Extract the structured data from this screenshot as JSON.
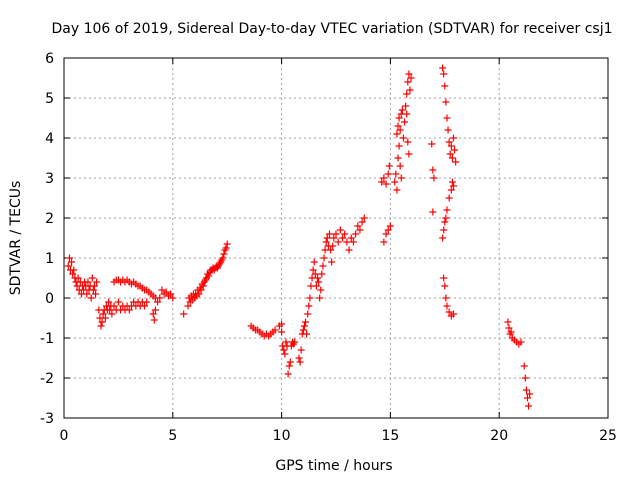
{
  "chart_data": {
    "type": "scatter",
    "title": "Day 106 of 2019, Sidereal Day-to-day VTEC variation (SDTVAR) for receiver csj1",
    "xlabel": "GPS time / hours",
    "ylabel": "SDTVAR / TECUs",
    "xlim": [
      0,
      25
    ],
    "ylim": [
      -3,
      6
    ],
    "xticks": [
      "0",
      "5",
      "10",
      "15",
      "20",
      "25"
    ],
    "yticks": [
      "-3",
      "-2",
      "-1",
      "0",
      "1",
      "2",
      "3",
      "4",
      "5",
      "6"
    ],
    "grid": true,
    "marker": "+",
    "color": "#ff0000",
    "series": [
      {
        "name": "SDTVAR",
        "points": [
          [
            0.2,
            0.8
          ],
          [
            0.25,
            1.0
          ],
          [
            0.3,
            0.7
          ],
          [
            0.35,
            0.9
          ],
          [
            0.4,
            0.6
          ],
          [
            0.45,
            0.7
          ],
          [
            0.5,
            0.5
          ],
          [
            0.55,
            0.4
          ],
          [
            0.6,
            0.3
          ],
          [
            0.65,
            0.5
          ],
          [
            0.7,
            0.2
          ],
          [
            0.75,
            0.4
          ],
          [
            0.8,
            0.1
          ],
          [
            0.85,
            0.3
          ],
          [
            0.9,
            0.2
          ],
          [
            0.95,
            0.4
          ],
          [
            1.0,
            0.3
          ],
          [
            1.05,
            0.1
          ],
          [
            1.1,
            0.4
          ],
          [
            1.15,
            0.2
          ],
          [
            1.2,
            0.3
          ],
          [
            1.25,
            0.0
          ],
          [
            1.3,
            0.5
          ],
          [
            1.35,
            0.2
          ],
          [
            1.4,
            0.3
          ],
          [
            1.45,
            0.1
          ],
          [
            1.5,
            0.4
          ],
          [
            1.6,
            -0.3
          ],
          [
            1.65,
            -0.5
          ],
          [
            1.7,
            -0.7
          ],
          [
            1.75,
            -0.6
          ],
          [
            1.8,
            -0.4
          ],
          [
            1.85,
            -0.3
          ],
          [
            1.9,
            -0.5
          ],
          [
            1.95,
            -0.2
          ],
          [
            2.0,
            -0.3
          ],
          [
            2.05,
            -0.1
          ],
          [
            2.1,
            -0.3
          ],
          [
            2.15,
            -0.2
          ],
          [
            2.2,
            -0.4
          ],
          [
            2.3,
            -0.2
          ],
          [
            2.4,
            -0.3
          ],
          [
            2.5,
            -0.1
          ],
          [
            2.6,
            -0.3
          ],
          [
            2.7,
            -0.2
          ],
          [
            2.8,
            -0.3
          ],
          [
            2.9,
            -0.2
          ],
          [
            3.0,
            -0.3
          ],
          [
            3.1,
            -0.2
          ],
          [
            3.2,
            -0.1
          ],
          [
            3.3,
            -0.2
          ],
          [
            3.4,
            -0.1
          ],
          [
            3.5,
            -0.2
          ],
          [
            3.6,
            -0.1
          ],
          [
            3.7,
            -0.2
          ],
          [
            3.8,
            -0.1
          ],
          [
            2.3,
            0.4
          ],
          [
            2.4,
            0.45
          ],
          [
            2.5,
            0.45
          ],
          [
            2.6,
            0.4
          ],
          [
            2.7,
            0.45
          ],
          [
            2.8,
            0.4
          ],
          [
            2.9,
            0.45
          ],
          [
            3.0,
            0.4
          ],
          [
            3.1,
            0.35
          ],
          [
            3.2,
            0.4
          ],
          [
            3.3,
            0.35
          ],
          [
            3.4,
            0.3
          ],
          [
            3.5,
            0.3
          ],
          [
            3.6,
            0.25
          ],
          [
            3.7,
            0.2
          ],
          [
            3.8,
            0.2
          ],
          [
            3.9,
            0.15
          ],
          [
            4.0,
            0.1
          ],
          [
            4.1,
            0.05
          ],
          [
            4.2,
            0.0
          ],
          [
            4.1,
            -0.4
          ],
          [
            4.15,
            -0.55
          ],
          [
            4.2,
            -0.3
          ],
          [
            4.3,
            -0.1
          ],
          [
            4.4,
            0.0
          ],
          [
            4.5,
            0.2
          ],
          [
            4.6,
            0.1
          ],
          [
            4.7,
            0.15
          ],
          [
            4.8,
            0.05
          ],
          [
            4.9,
            0.1
          ],
          [
            5.0,
            0.0
          ],
          [
            5.5,
            -0.4
          ],
          [
            5.7,
            -0.2
          ],
          [
            5.75,
            0.0
          ],
          [
            5.8,
            -0.1
          ],
          [
            5.85,
            0.05
          ],
          [
            5.9,
            -0.05
          ],
          [
            5.95,
            0.1
          ],
          [
            6.0,
            0.0
          ],
          [
            6.05,
            0.1
          ],
          [
            6.1,
            0.05
          ],
          [
            6.15,
            0.2
          ],
          [
            6.2,
            0.1
          ],
          [
            6.25,
            0.25
          ],
          [
            6.3,
            0.2
          ],
          [
            6.35,
            0.35
          ],
          [
            6.4,
            0.3
          ],
          [
            6.45,
            0.4
          ],
          [
            6.5,
            0.45
          ],
          [
            6.55,
            0.5
          ],
          [
            6.6,
            0.6
          ],
          [
            6.65,
            0.55
          ],
          [
            6.7,
            0.65
          ],
          [
            6.75,
            0.7
          ],
          [
            6.8,
            0.7
          ],
          [
            6.85,
            0.75
          ],
          [
            6.9,
            0.7
          ],
          [
            6.95,
            0.75
          ],
          [
            7.0,
            0.8
          ],
          [
            7.05,
            0.75
          ],
          [
            7.1,
            0.8
          ],
          [
            7.15,
            0.85
          ],
          [
            7.2,
            0.9
          ],
          [
            7.25,
            0.95
          ],
          [
            7.3,
            1.0
          ],
          [
            7.35,
            1.1
          ],
          [
            7.4,
            1.2
          ],
          [
            7.45,
            1.25
          ],
          [
            7.5,
            1.35
          ],
          [
            8.6,
            -0.7
          ],
          [
            8.7,
            -0.75
          ],
          [
            8.8,
            -0.8
          ],
          [
            8.9,
            -0.8
          ],
          [
            9.0,
            -0.85
          ],
          [
            9.1,
            -0.9
          ],
          [
            9.2,
            -0.95
          ],
          [
            9.3,
            -0.9
          ],
          [
            9.4,
            -0.95
          ],
          [
            9.5,
            -0.9
          ],
          [
            9.6,
            -0.85
          ],
          [
            9.7,
            -0.8
          ],
          [
            9.9,
            -0.7
          ],
          [
            10.0,
            -0.65
          ],
          [
            10.0,
            -0.85
          ],
          [
            10.05,
            -1.2
          ],
          [
            10.1,
            -1.3
          ],
          [
            10.15,
            -1.4
          ],
          [
            10.2,
            -1.1
          ],
          [
            10.25,
            -1.2
          ],
          [
            10.3,
            -1.9
          ],
          [
            10.35,
            -1.7
          ],
          [
            10.4,
            -1.6
          ],
          [
            10.45,
            -1.2
          ],
          [
            10.5,
            -1.1
          ],
          [
            10.55,
            -1.15
          ],
          [
            10.6,
            -1.1
          ],
          [
            10.8,
            -1.5
          ],
          [
            10.85,
            -1.6
          ],
          [
            10.9,
            -1.3
          ],
          [
            10.95,
            -0.9
          ],
          [
            11.0,
            -0.8
          ],
          [
            11.05,
            -0.7
          ],
          [
            11.1,
            -0.6
          ],
          [
            11.15,
            -0.9
          ],
          [
            11.2,
            -0.4
          ],
          [
            11.25,
            -0.2
          ],
          [
            11.3,
            0.0
          ],
          [
            11.35,
            0.3
          ],
          [
            11.4,
            0.5
          ],
          [
            11.45,
            0.7
          ],
          [
            11.5,
            0.9
          ],
          [
            11.55,
            0.6
          ],
          [
            11.6,
            0.3
          ],
          [
            11.65,
            0.5
          ],
          [
            11.7,
            0.4
          ],
          [
            11.75,
            0.0
          ],
          [
            11.8,
            0.2
          ],
          [
            11.85,
            0.6
          ],
          [
            11.9,
            0.8
          ],
          [
            11.95,
            1.0
          ],
          [
            12.0,
            1.2
          ],
          [
            12.05,
            1.4
          ],
          [
            12.1,
            1.5
          ],
          [
            12.15,
            1.3
          ],
          [
            12.2,
            1.6
          ],
          [
            12.25,
            1.2
          ],
          [
            12.3,
            0.9
          ],
          [
            12.35,
            1.3
          ],
          [
            12.4,
            1.5
          ],
          [
            12.5,
            1.6
          ],
          [
            12.6,
            1.4
          ],
          [
            12.7,
            1.7
          ],
          [
            12.8,
            1.5
          ],
          [
            12.9,
            1.6
          ],
          [
            13.0,
            1.4
          ],
          [
            13.1,
            1.2
          ],
          [
            13.2,
            1.5
          ],
          [
            13.3,
            1.4
          ],
          [
            13.4,
            1.6
          ],
          [
            13.5,
            1.8
          ],
          [
            13.6,
            1.7
          ],
          [
            13.7,
            1.9
          ],
          [
            13.8,
            2.0
          ],
          [
            14.6,
            2.9
          ],
          [
            14.7,
            3.0
          ],
          [
            14.8,
            2.85
          ],
          [
            14.9,
            3.1
          ],
          [
            14.95,
            3.3
          ],
          [
            14.7,
            1.4
          ],
          [
            14.8,
            1.6
          ],
          [
            14.9,
            1.7
          ],
          [
            15.0,
            1.8
          ],
          [
            15.2,
            2.9
          ],
          [
            15.25,
            3.1
          ],
          [
            15.3,
            2.7
          ],
          [
            15.35,
            3.5
          ],
          [
            15.4,
            3.8
          ],
          [
            15.45,
            3.3
          ],
          [
            15.5,
            3.0
          ],
          [
            15.3,
            4.1
          ],
          [
            15.35,
            4.3
          ],
          [
            15.4,
            4.5
          ],
          [
            15.45,
            4.2
          ],
          [
            15.5,
            4.6
          ],
          [
            15.55,
            4.7
          ],
          [
            15.6,
            4.0
          ],
          [
            15.65,
            4.4
          ],
          [
            15.7,
            4.8
          ],
          [
            15.75,
            5.1
          ],
          [
            15.8,
            5.4
          ],
          [
            15.85,
            5.6
          ],
          [
            15.9,
            5.2
          ],
          [
            15.95,
            5.5
          ],
          [
            15.75,
            4.6
          ],
          [
            15.8,
            3.9
          ],
          [
            15.85,
            3.6
          ],
          [
            16.9,
            3.85
          ],
          [
            16.95,
            3.2
          ],
          [
            17.0,
            3.0
          ],
          [
            16.95,
            2.15
          ],
          [
            17.4,
            5.75
          ],
          [
            17.45,
            5.6
          ],
          [
            17.5,
            5.3
          ],
          [
            17.55,
            4.9
          ],
          [
            17.6,
            4.5
          ],
          [
            17.65,
            4.2
          ],
          [
            17.7,
            3.9
          ],
          [
            17.75,
            3.6
          ],
          [
            17.8,
            3.8
          ],
          [
            17.85,
            3.5
          ],
          [
            17.9,
            4.0
          ],
          [
            17.95,
            3.7
          ],
          [
            18.0,
            3.4
          ],
          [
            17.4,
            1.5
          ],
          [
            17.45,
            1.7
          ],
          [
            17.5,
            1.9
          ],
          [
            17.55,
            2.0
          ],
          [
            17.6,
            2.2
          ],
          [
            17.7,
            2.5
          ],
          [
            17.8,
            2.7
          ],
          [
            17.85,
            2.9
          ],
          [
            17.9,
            2.8
          ],
          [
            17.45,
            0.5
          ],
          [
            17.5,
            0.3
          ],
          [
            17.55,
            0.0
          ],
          [
            17.6,
            -0.2
          ],
          [
            17.7,
            -0.35
          ],
          [
            17.8,
            -0.45
          ],
          [
            17.9,
            -0.4
          ],
          [
            20.4,
            -0.6
          ],
          [
            20.45,
            -0.75
          ],
          [
            20.5,
            -0.9
          ],
          [
            20.55,
            -0.85
          ],
          [
            20.6,
            -1.0
          ],
          [
            20.7,
            -1.05
          ],
          [
            20.8,
            -1.1
          ],
          [
            20.9,
            -1.15
          ],
          [
            21.0,
            -1.1
          ],
          [
            21.15,
            -1.7
          ],
          [
            21.2,
            -2.0
          ],
          [
            21.25,
            -2.3
          ],
          [
            21.3,
            -2.5
          ],
          [
            21.35,
            -2.7
          ],
          [
            21.4,
            -2.4
          ]
        ]
      }
    ]
  }
}
